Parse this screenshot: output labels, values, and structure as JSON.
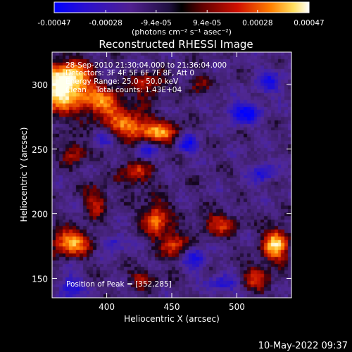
{
  "colorbar": {
    "tick_labels": [
      "-0.00047",
      "-0.00028",
      "-9.4e-05",
      "9.4e-05",
      "0.00028",
      "0.00047"
    ],
    "tick_values": [
      -0.00047,
      -0.00028,
      -9.4e-05,
      9.4e-05,
      0.00028,
      0.00047
    ],
    "range": [
      -0.00047,
      0.00047
    ],
    "unit_label": "(photons cm⁻² s⁻¹ asec⁻²)"
  },
  "title": "Reconstructed RHESSI Image",
  "info_lines": [
    "28-Sep-2010 21:30:04.000 to 21:36:04.000",
    "Detectors: 3F 4F 5F 6F 7F 8F, Att 0",
    "Energy Range: 25.0 - 50.0 keV",
    "Clean    Total counts: 1.43E+04"
  ],
  "peak_text": "Position of Peak = [352,285]",
  "footer_timestamp": "10-May-2022 09:37",
  "chart_data": {
    "type": "heatmap",
    "title": "Reconstructed RHESSI Image",
    "xlabel": "Heliocentric X (arcsec)",
    "ylabel": "Heliocentric Y (arcsec)",
    "xlim": [
      358,
      542
    ],
    "ylim": [
      135,
      325
    ],
    "xticks": [
      400,
      450,
      500
    ],
    "yticks": [
      150,
      200,
      250,
      300
    ],
    "colorscale": [
      "#0000ff",
      "#5030a8",
      "#3a1c5e",
      "#000000",
      "#700000",
      "#d01000",
      "#ff8000",
      "#ffd040",
      "#ffffff"
    ],
    "blobs": [
      {
        "x": 362,
        "y": 296,
        "a": 1.0,
        "sx": 10,
        "sy": 14
      },
      {
        "x": 376,
        "y": 304,
        "a": 0.85,
        "sx": 10,
        "sy": 9
      },
      {
        "x": 396,
        "y": 286,
        "a": 0.8,
        "sx": 13,
        "sy": 8
      },
      {
        "x": 418,
        "y": 268,
        "a": 0.8,
        "sx": 13,
        "sy": 7
      },
      {
        "x": 442,
        "y": 262,
        "a": 0.7,
        "sx": 10,
        "sy": 6
      },
      {
        "x": 432,
        "y": 300,
        "a": 0.5,
        "sx": 9,
        "sy": 7
      },
      {
        "x": 375,
        "y": 248,
        "a": 0.45,
        "sx": 7,
        "sy": 7
      },
      {
        "x": 422,
        "y": 232,
        "a": 0.55,
        "sx": 8,
        "sy": 8
      },
      {
        "x": 392,
        "y": 210,
        "a": 0.5,
        "sx": 6,
        "sy": 9
      },
      {
        "x": 438,
        "y": 196,
        "a": 0.75,
        "sx": 7,
        "sy": 10
      },
      {
        "x": 452,
        "y": 176,
        "a": 0.6,
        "sx": 7,
        "sy": 8
      },
      {
        "x": 372,
        "y": 178,
        "a": 0.9,
        "sx": 11,
        "sy": 7
      },
      {
        "x": 486,
        "y": 192,
        "a": 0.55,
        "sx": 10,
        "sy": 6
      },
      {
        "x": 530,
        "y": 176,
        "a": 1.0,
        "sx": 7,
        "sy": 9
      },
      {
        "x": 515,
        "y": 150,
        "a": 0.5,
        "sx": 8,
        "sy": 8
      },
      {
        "x": 428,
        "y": 150,
        "a": 0.4,
        "sx": 8,
        "sy": 5
      },
      {
        "x": 470,
        "y": 300,
        "a": 0.35,
        "sx": 6,
        "sy": 6
      },
      {
        "x": 462,
        "y": 254,
        "a": -0.6,
        "sx": 6,
        "sy": 5
      },
      {
        "x": 430,
        "y": 248,
        "a": -0.5,
        "sx": 6,
        "sy": 5
      },
      {
        "x": 505,
        "y": 278,
        "a": -0.7,
        "sx": 9,
        "sy": 6
      },
      {
        "x": 525,
        "y": 302,
        "a": -0.45,
        "sx": 8,
        "sy": 7
      },
      {
        "x": 520,
        "y": 232,
        "a": -0.5,
        "sx": 7,
        "sy": 6
      },
      {
        "x": 405,
        "y": 178,
        "a": -0.45,
        "sx": 6,
        "sy": 5
      },
      {
        "x": 468,
        "y": 165,
        "a": -0.55,
        "sx": 6,
        "sy": 6
      },
      {
        "x": 372,
        "y": 143,
        "a": -0.6,
        "sx": 6,
        "sy": 6
      },
      {
        "x": 490,
        "y": 145,
        "a": -0.5,
        "sx": 8,
        "sy": 5
      },
      {
        "x": 398,
        "y": 257,
        "a": -0.35,
        "sx": 6,
        "sy": 5
      }
    ]
  }
}
